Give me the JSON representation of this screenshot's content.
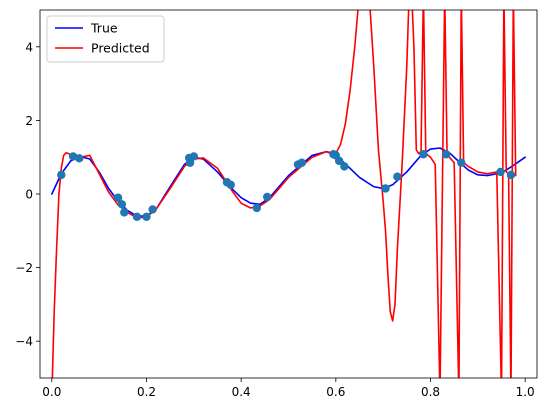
{
  "chart_data": {
    "type": "line",
    "title": "",
    "xlabel": "",
    "ylabel": "",
    "xlim": [
      -0.025,
      1.025
    ],
    "ylim": [
      -5,
      5
    ],
    "xticks": [
      0.0,
      0.2,
      0.4,
      0.6,
      0.8,
      1.0
    ],
    "xtick_labels": [
      "0.0",
      "0.2",
      "0.4",
      "0.6",
      "0.8",
      "1.0"
    ],
    "yticks": [
      -4,
      -2,
      0,
      2,
      4
    ],
    "ytick_labels": [
      "−4",
      "−2",
      "0",
      "2",
      "4"
    ],
    "grid": false,
    "legend_position": "top-left",
    "colors": {
      "true": "#0000ff",
      "predicted": "#ff0000",
      "points": "#1f77b4"
    },
    "series": [
      {
        "name": "True",
        "x": [
          0.0,
          0.02,
          0.04,
          0.06,
          0.08,
          0.1,
          0.12,
          0.14,
          0.16,
          0.18,
          0.2,
          0.22,
          0.25,
          0.28,
          0.3,
          0.32,
          0.35,
          0.38,
          0.4,
          0.42,
          0.44,
          0.46,
          0.5,
          0.55,
          0.58,
          0.6,
          0.62,
          0.65,
          0.68,
          0.7,
          0.72,
          0.75,
          0.78,
          0.8,
          0.82,
          0.84,
          0.86,
          0.88,
          0.9,
          0.92,
          0.94,
          0.96,
          0.98,
          1.0
        ],
        "y": [
          0.0,
          0.55,
          0.9,
          1.02,
          0.95,
          0.6,
          0.15,
          -0.2,
          -0.45,
          -0.6,
          -0.6,
          -0.42,
          0.2,
          0.8,
          1.0,
          0.95,
          0.6,
          0.15,
          -0.1,
          -0.25,
          -0.28,
          -0.1,
          0.5,
          1.05,
          1.15,
          1.05,
          0.82,
          0.45,
          0.2,
          0.15,
          0.25,
          0.6,
          1.05,
          1.22,
          1.25,
          1.12,
          0.88,
          0.65,
          0.52,
          0.5,
          0.55,
          0.65,
          0.82,
          1.0
        ]
      },
      {
        "name": "Predicted",
        "x": [
          0.0,
          0.005,
          0.01,
          0.015,
          0.02,
          0.025,
          0.03,
          0.035,
          0.045,
          0.06,
          0.08,
          0.1,
          0.12,
          0.14,
          0.16,
          0.18,
          0.2,
          0.22,
          0.25,
          0.28,
          0.3,
          0.32,
          0.35,
          0.38,
          0.4,
          0.42,
          0.44,
          0.46,
          0.5,
          0.55,
          0.58,
          0.6,
          0.61,
          0.62,
          0.63,
          0.64,
          0.65,
          0.66,
          0.67,
          0.68,
          0.69,
          0.7,
          0.705,
          0.71,
          0.715,
          0.72,
          0.725,
          0.73,
          0.74,
          0.75,
          0.755,
          0.76,
          0.765,
          0.77,
          0.775,
          0.78,
          0.785,
          0.79,
          0.8,
          0.81,
          0.82,
          0.83,
          0.835,
          0.84,
          0.85,
          0.86,
          0.865,
          0.87,
          0.88,
          0.9,
          0.92,
          0.94,
          0.95,
          0.955,
          0.96,
          0.965,
          0.97,
          0.975,
          0.98
        ],
        "y": [
          -5.5,
          -3.2,
          -1.5,
          0.0,
          0.7,
          1.05,
          1.12,
          1.1,
          1.0,
          1.0,
          1.05,
          0.55,
          0.05,
          -0.3,
          -0.5,
          -0.65,
          -0.62,
          -0.42,
          0.15,
          0.75,
          0.95,
          0.98,
          0.7,
          0.1,
          -0.25,
          -0.38,
          -0.32,
          -0.15,
          0.45,
          1.0,
          1.15,
          1.1,
          1.35,
          1.9,
          2.8,
          4.0,
          5.5,
          6.0,
          5.5,
          3.5,
          1.2,
          -0.2,
          -1.0,
          -2.2,
          -3.2,
          -3.45,
          -3.0,
          -1.5,
          0.8,
          3.5,
          5.5,
          5.5,
          4.0,
          1.2,
          1.1,
          1.15,
          5.5,
          1.1,
          1.0,
          0.8,
          -5.5,
          5.5,
          1.05,
          1.0,
          0.85,
          -5.5,
          5.5,
          0.85,
          0.75,
          0.6,
          0.55,
          0.6,
          -5.5,
          5.5,
          0.6,
          0.55,
          -5.5,
          5.5,
          0.5
        ]
      }
    ],
    "points": {
      "x": [
        0.02,
        0.045,
        0.058,
        0.14,
        0.148,
        0.153,
        0.18,
        0.2,
        0.213,
        0.29,
        0.292,
        0.3,
        0.37,
        0.378,
        0.433,
        0.455,
        0.52,
        0.528,
        0.595,
        0.6,
        0.607,
        0.618,
        0.705,
        0.73,
        0.785,
        0.833,
        0.865,
        0.948,
        0.97
      ],
      "y": [
        0.52,
        1.02,
        0.97,
        -0.1,
        -0.28,
        -0.5,
        -0.62,
        -0.62,
        -0.42,
        0.98,
        0.85,
        1.02,
        0.32,
        0.25,
        -0.38,
        -0.08,
        0.8,
        0.85,
        1.08,
        1.05,
        0.9,
        0.75,
        0.15,
        0.47,
        1.08,
        1.08,
        0.85,
        0.6,
        0.52
      ]
    }
  }
}
